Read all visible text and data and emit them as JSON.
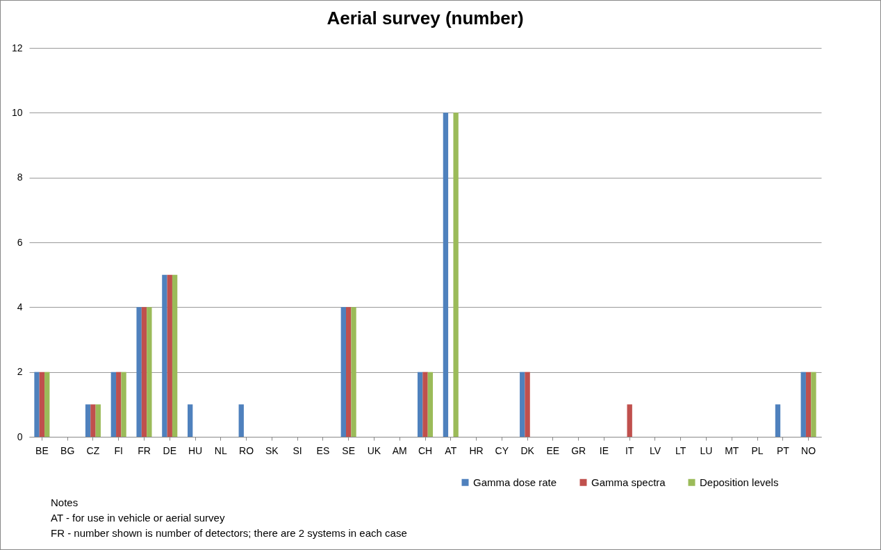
{
  "chart_data": {
    "type": "bar",
    "title": "Aerial survey (number)",
    "categories": [
      "BE",
      "BG",
      "CZ",
      "FI",
      "FR",
      "DE",
      "HU",
      "NL",
      "RO",
      "SK",
      "SI",
      "ES",
      "SE",
      "UK",
      "AM",
      "CH",
      "AT",
      "HR",
      "CY",
      "DK",
      "EE",
      "GR",
      "IE",
      "IT",
      "LV",
      "LT",
      "LU",
      "MT",
      "PL",
      "PT",
      "NO"
    ],
    "series": [
      {
        "name": "Gamma dose rate",
        "color": "#4f81bd",
        "values": [
          2,
          0,
          1,
          2,
          4,
          5,
          1,
          0,
          1,
          0,
          0,
          0,
          4,
          0,
          0,
          2,
          10,
          0,
          0,
          2,
          0,
          0,
          0,
          0,
          0,
          0,
          0,
          0,
          0,
          1,
          2
        ]
      },
      {
        "name": "Gamma spectra",
        "color": "#c0504d",
        "values": [
          2,
          0,
          1,
          2,
          4,
          5,
          0,
          0,
          0,
          0,
          0,
          0,
          4,
          0,
          0,
          2,
          0,
          0,
          0,
          2,
          0,
          0,
          0,
          1,
          0,
          0,
          0,
          0,
          0,
          0,
          2
        ]
      },
      {
        "name": "Deposition levels",
        "color": "#9bbb59",
        "values": [
          2,
          0,
          1,
          2,
          4,
          5,
          0,
          0,
          0,
          0,
          0,
          0,
          4,
          0,
          0,
          2,
          10,
          0,
          0,
          0,
          0,
          0,
          0,
          0,
          0,
          0,
          0,
          0,
          0,
          0,
          2
        ]
      }
    ],
    "ylim": [
      0,
      12
    ],
    "yticks": [
      0,
      2,
      4,
      6,
      8,
      10,
      12
    ],
    "grid": "y",
    "legend": "bottom",
    "annotations": [
      "Notes",
      "AT - for use in vehicle or aerial survey",
      "FR - number shown is number of detectors; there are 2 systems in each case"
    ]
  }
}
